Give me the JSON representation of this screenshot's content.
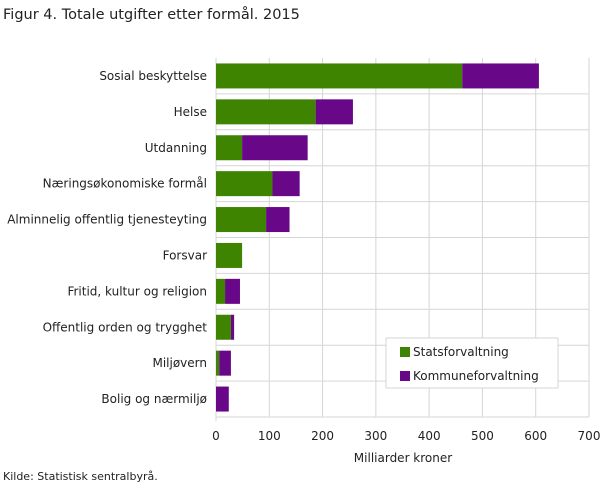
{
  "title": "Figur 4. Totale utgifter etter formål. 2015",
  "source": "Kilde: Statistisk sentralbyrå.",
  "chart_data": {
    "type": "bar",
    "orientation": "horizontal",
    "stacked": true,
    "categories": [
      "Sosial beskyttelse",
      "Helse",
      "Utdanning",
      "Næringsøkonomiske formål",
      "Alminnelig offentlig tjenesteyting",
      "Forsvar",
      "Fritid, kultur og religion",
      "Offentlig orden og trygghet",
      "Miljøvern",
      "Bolig og nærmiljø"
    ],
    "series": [
      {
        "name": "Statsforvaltning",
        "color": "#3f8400",
        "values": [
          462,
          187,
          49,
          106,
          94,
          49,
          17,
          28,
          6,
          0
        ]
      },
      {
        "name": "Kommuneforvaltning",
        "color": "#690789",
        "values": [
          144,
          70,
          123,
          51,
          44,
          0,
          28,
          6,
          22,
          24
        ]
      }
    ],
    "xlabel": "Milliarder  kroner",
    "xlim": [
      0,
      700
    ],
    "xticks": [
      0,
      100,
      200,
      300,
      400,
      500,
      600,
      700
    ],
    "grid": true,
    "legend_position": "bottom-right"
  }
}
